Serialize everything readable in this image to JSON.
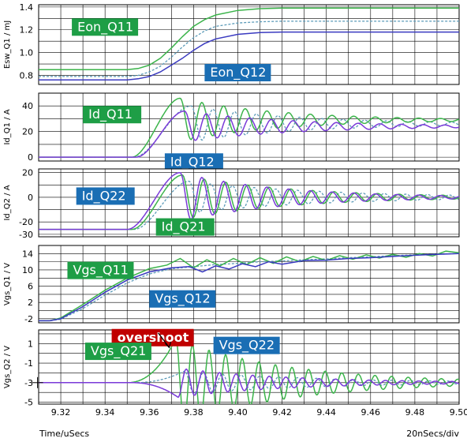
{
  "chart_data": {
    "type": "line",
    "x_axis": {
      "label": "Time/uSecs",
      "range": [
        9.31,
        9.5
      ],
      "ticks": [
        9.32,
        9.34,
        9.36,
        9.38,
        9.4,
        9.42,
        9.44,
        9.46,
        9.48,
        9.5
      ],
      "tick_labels": [
        "9.32",
        "9.34",
        "9.36",
        "9.38",
        "9.40",
        "9.42",
        "9.44",
        "9.46",
        "9.48",
        "9.50"
      ],
      "scale_text": "20nSecs/div"
    },
    "grid": true,
    "panels": [
      {
        "ylabel": "Esw_Q1 / mJ",
        "ylim": [
          0.72,
          1.42
        ],
        "yticks": [
          0.8,
          1.0,
          1.2,
          1.4
        ],
        "ytick_labels": [
          "0.8",
          "1.0",
          "1.2",
          "1.4"
        ],
        "series": [
          {
            "name": "Eon_Q11",
            "color": "#3cb44b",
            "style": "solid",
            "x": [
              9.31,
              9.35,
              9.355,
              9.36,
              9.365,
              9.37,
              9.375,
              9.38,
              9.385,
              9.39,
              9.4,
              9.41,
              9.42,
              9.5
            ],
            "y": [
              0.85,
              0.85,
              0.86,
              0.89,
              0.95,
              1.04,
              1.14,
              1.23,
              1.29,
              1.33,
              1.37,
              1.385,
              1.39,
              1.39
            ]
          },
          {
            "name": "Eon_Q12",
            "color": "#3a3ac0",
            "style": "solid",
            "x": [
              9.31,
              9.35,
              9.355,
              9.36,
              9.365,
              9.37,
              9.375,
              9.38,
              9.385,
              9.39,
              9.4,
              9.41,
              9.42,
              9.5
            ],
            "y": [
              0.76,
              0.76,
              0.77,
              0.79,
              0.83,
              0.89,
              0.95,
              1.02,
              1.08,
              1.12,
              1.16,
              1.175,
              1.18,
              1.18
            ]
          },
          {
            "name": "",
            "color": "#5a9ab8",
            "style": "dashed",
            "x": [
              9.31,
              9.35,
              9.355,
              9.36,
              9.365,
              9.37,
              9.375,
              9.38,
              9.385,
              9.39,
              9.4,
              9.41,
              9.42,
              9.5
            ],
            "y": [
              0.79,
              0.79,
              0.8,
              0.83,
              0.88,
              0.96,
              1.05,
              1.13,
              1.19,
              1.23,
              1.26,
              1.27,
              1.275,
              1.275
            ]
          }
        ],
        "annotations": [
          {
            "text": "Eon_Q11",
            "bg": "#1e9e46",
            "x": 9.325,
            "y": 1.3
          },
          {
            "text": "Eon_Q12",
            "bg": "#1a6eb4",
            "x": 9.385,
            "y": 0.9
          }
        ]
      },
      {
        "ylabel": "Id_Q1 / A",
        "ylim": [
          -3,
          50
        ],
        "yticks": [
          0,
          20,
          40
        ],
        "ytick_labels": [
          "0",
          "20",
          "40"
        ],
        "series": [
          {
            "name": "Id_Q11",
            "color": "#3cb44b",
            "style": "solid",
            "kind": "ringing",
            "base": 0,
            "t0": 9.352,
            "tpk": 9.374,
            "peak": 46,
            "settle": 29,
            "amp": 15,
            "period": 0.0098,
            "decay": 0.045
          },
          {
            "name": "Id_Q12",
            "color": "#7a3ad8",
            "style": "solid",
            "kind": "ringing",
            "base": 0,
            "t0": 9.354,
            "tpk": 9.376,
            "peak": 36,
            "settle": 24,
            "amp": 11,
            "period": 0.0098,
            "decay": 0.05,
            "phase": 0.12
          },
          {
            "name": "",
            "color": "#5a9ab8",
            "style": "dashed",
            "kind": "ringing",
            "base": 0,
            "t0": 9.353,
            "tpk": 9.379,
            "peak": 40,
            "settle": 26,
            "amp": 13,
            "period": 0.0098,
            "decay": 0.05,
            "phase": 0.3
          }
        ],
        "annotations": [
          {
            "text": "Id_Q11",
            "bg": "#1e9e46",
            "x": 9.33,
            "y": 40
          },
          {
            "text": "Id_Q12",
            "bg": "#1a6eb4",
            "x": 9.367,
            "y": 3
          }
        ]
      },
      {
        "ylabel": "Id_Q2 / A",
        "ylim": [
          -32,
          23
        ],
        "yticks": [
          -30,
          -20,
          0,
          20
        ],
        "ytick_labels": [
          "-30",
          "-20",
          "0",
          "20"
        ],
        "series": [
          {
            "name": "Id_Q21",
            "color": "#3cb44b",
            "style": "solid",
            "kind": "ringing",
            "base": -26,
            "t0": 9.352,
            "tpk": 9.375,
            "peak": 18,
            "settle": 0,
            "amp": 17,
            "period": 0.0098,
            "decay": 0.05
          },
          {
            "name": "Id_Q22",
            "color": "#7a3ad8",
            "style": "solid",
            "kind": "ringing",
            "base": -26,
            "t0": 9.35,
            "tpk": 9.374,
            "peak": 20,
            "settle": 0,
            "amp": 18,
            "period": 0.0098,
            "decay": 0.045,
            "phase": 0.1
          },
          {
            "name": "",
            "color": "#5a9ab8",
            "style": "dashed",
            "kind": "ringing",
            "base": -26,
            "t0": 9.353,
            "tpk": 9.378,
            "peak": 13,
            "settle": 0,
            "amp": 15,
            "period": 0.0098,
            "decay": 0.06,
            "phase": 0.3
          }
        ],
        "annotations": [
          {
            "text": "Id_Q22",
            "bg": "#1a6eb4",
            "x": 9.327,
            "y": 8
          },
          {
            "text": "Id_Q21",
            "bg": "#1e9e46",
            "x": 9.363,
            "y": -17
          }
        ]
      },
      {
        "ylabel": "Vgs_Q1 / V",
        "ylim": [
          -3,
          16
        ],
        "yticks": [
          -2,
          2,
          6,
          10,
          14
        ],
        "ytick_labels": [
          "-2",
          "2",
          "6",
          "10",
          "14"
        ],
        "series": [
          {
            "name": "Vgs_Q11",
            "color": "#3cb44b",
            "style": "solid",
            "x": [
              9.31,
              9.315,
              9.32,
              9.33,
              9.34,
              9.35,
              9.36,
              9.368,
              9.374,
              9.38,
              9.386,
              9.392,
              9.398,
              9.404,
              9.41,
              9.416,
              9.422,
              9.428,
              9.434,
              9.44,
              9.446,
              9.452,
              9.458,
              9.464,
              9.47,
              9.476,
              9.482,
              9.488,
              9.494,
              9.5
            ],
            "y": [
              -2.5,
              -2.5,
              -1.8,
              1.5,
              5,
              8,
              10.3,
              11.2,
              12.8,
              10.5,
              12.5,
              11,
              12.8,
              11.3,
              13,
              11.6,
              13.2,
              12,
              13.3,
              12.3,
              13.5,
              12.6,
              13.7,
              12.9,
              13.8,
              13.1,
              14,
              13.4,
              14.6,
              14.2
            ]
          },
          {
            "name": "Vgs_Q12",
            "color": "#3a3ac0",
            "style": "solid",
            "x": [
              9.31,
              9.315,
              9.32,
              9.33,
              9.34,
              9.35,
              9.36,
              9.37,
              9.378,
              9.384,
              9.39,
              9.396,
              9.402,
              9.408,
              9.414,
              9.42,
              9.43,
              9.44,
              9.45,
              9.46,
              9.47,
              9.48,
              9.49,
              9.5
            ],
            "y": [
              -2.5,
              -2.5,
              -2,
              1,
              4.5,
              7.5,
              9.5,
              10.5,
              10.8,
              9.5,
              11,
              10.2,
              11.5,
              10.8,
              12,
              11.4,
              12.3,
              12.4,
              12.8,
              13,
              13.3,
              13.6,
              13.8,
              14
            ]
          },
          {
            "name": "",
            "color": "#5a9ab8",
            "style": "dashed",
            "x": [
              9.31,
              9.315,
              9.32,
              9.33,
              9.34,
              9.35,
              9.36,
              9.37,
              9.38,
              9.39,
              9.4,
              9.41,
              9.42,
              9.43,
              9.44,
              9.45,
              9.46,
              9.47,
              9.48,
              9.49,
              9.5
            ],
            "y": [
              -2.5,
              -2.5,
              -2.1,
              0.5,
              3.8,
              6.8,
              9,
              10.3,
              10.8,
              11.3,
              11.6,
              12,
              12.2,
              12.5,
              12.7,
              13,
              13.2,
              13.5,
              13.7,
              13.9,
              14
            ]
          }
        ],
        "annotations": [
          {
            "text": "Vgs_Q11",
            "bg": "#1e9e46",
            "x": 9.323,
            "y": 12
          },
          {
            "text": "Vgs_Q12",
            "bg": "#1a6eb4",
            "x": 9.36,
            "y": 5
          }
        ]
      },
      {
        "ylabel": "Vgs_Q2 / V",
        "ylim": [
          -5.2,
          2.4
        ],
        "yticks": [
          -5,
          -3,
          -1,
          1
        ],
        "ytick_labels": [
          "-5",
          "-3",
          "-1",
          "1"
        ],
        "series": [
          {
            "name": "Vgs_Q21",
            "color": "#3cb44b",
            "style": "solid",
            "kind": "vgs2",
            "base": -3,
            "t0": 9.35,
            "t1": 9.372,
            "peak": 1.5,
            "amp": 2.4,
            "period": 0.0075,
            "decay": 0.05,
            "sign": 1
          },
          {
            "name": "Vgs_Q22",
            "color": "#7a3ad8",
            "style": "solid",
            "kind": "vgs2",
            "base": -3,
            "t0": 9.352,
            "t1": 9.373,
            "peak": -4.5,
            "amp": 2.6,
            "period": 0.0075,
            "decay": 0.05,
            "sign": -1
          },
          {
            "name": "",
            "color": "#5a9ab8",
            "style": "dashed",
            "kind": "vgs2",
            "base": -3,
            "t0": 9.353,
            "t1": 9.376,
            "peak": -1.8,
            "amp": 1.4,
            "period": 0.0085,
            "decay": 0.06,
            "sign": 1
          }
        ],
        "annotations": [
          {
            "text": "overshoot",
            "bg": "#c00000",
            "x": 9.343,
            "y": 2.5,
            "bold": true
          },
          {
            "text": "Vgs_Q21",
            "bg": "#1e9e46",
            "x": 9.331,
            "y": 1.1
          },
          {
            "text": "Vgs_Q22",
            "bg": "#1a6eb4",
            "x": 9.389,
            "y": 1.7
          }
        ]
      }
    ]
  }
}
